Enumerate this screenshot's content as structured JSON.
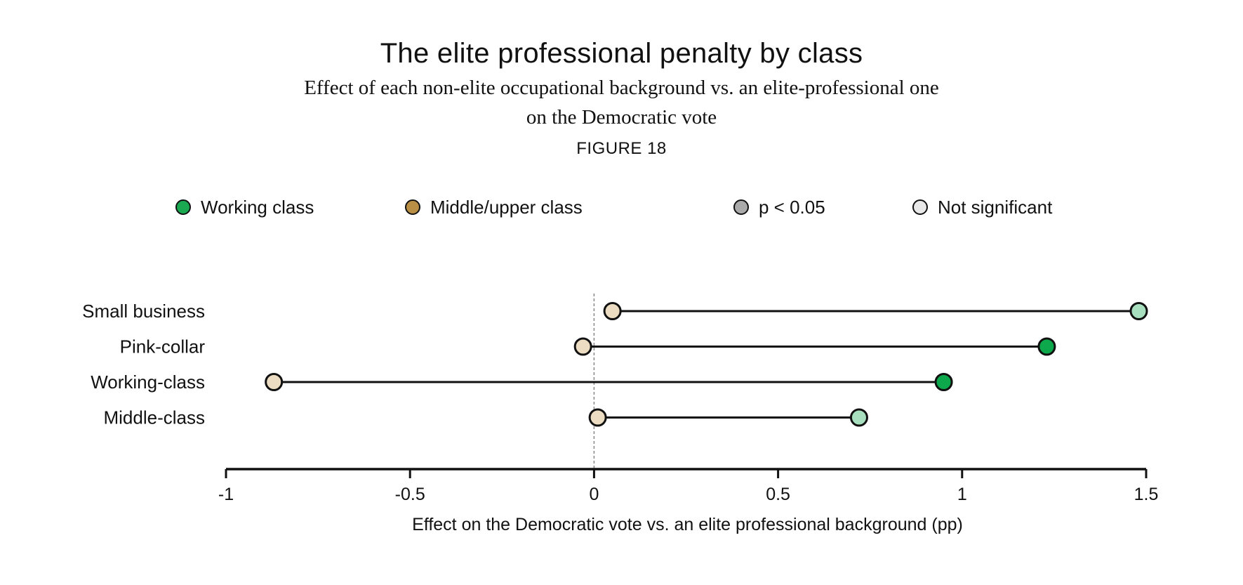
{
  "header": {
    "title": "The elite professional penalty by class",
    "subtitle_line1": "Effect of each non-elite occupational background vs. an elite-professional one",
    "subtitle_line2": "on the Democratic vote",
    "figure_label": "FIGURE 18"
  },
  "legend": [
    {
      "label": "Working class",
      "color": "#1aa851"
    },
    {
      "label": "Middle/upper class",
      "color": "#b98f46"
    },
    {
      "label": "p < 0.05",
      "color": "#aaaaaa"
    },
    {
      "label": "Not significant",
      "color": "#e8e8e8"
    }
  ],
  "colors": {
    "working_sig": "#0ea84c",
    "working_ns": "#a8dfbe",
    "middle_ns": "#ecdcc2",
    "stroke": "#111111",
    "zero_line": "#888888"
  },
  "chart_data": {
    "type": "dumbbell",
    "xlabel": "Effect on the Democratic vote vs. an elite professional background (pp)",
    "xlim": [
      -1,
      1.5
    ],
    "xticks": [
      -1,
      -0.5,
      0,
      0.5,
      1,
      1.5
    ],
    "xtick_labels": [
      "-1",
      "-0.5",
      "0",
      "0.5",
      "1",
      "1.5"
    ],
    "categories": [
      "Small business",
      "Pink-collar",
      "Working-class",
      "Middle-class"
    ],
    "series": [
      {
        "name": "Middle/upper class",
        "values": [
          0.05,
          -0.03,
          -0.87,
          0.01
        ],
        "significant": [
          false,
          false,
          false,
          false
        ]
      },
      {
        "name": "Working class",
        "values": [
          1.48,
          1.23,
          0.95,
          0.72
        ],
        "significant": [
          false,
          true,
          true,
          false
        ]
      }
    ]
  }
}
